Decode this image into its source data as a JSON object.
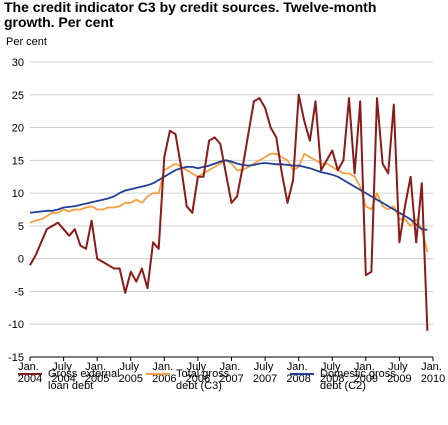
{
  "chart_data": {
    "type": "line",
    "title": "The credit indicator C3 by credit sources. Twelve-month growth. Per cent",
    "y_label": "Per cent",
    "categories": [
      "Jan. 2004",
      null,
      null,
      null,
      null,
      null,
      "July 2004",
      null,
      null,
      null,
      null,
      null,
      "Jan. 2005",
      null,
      null,
      null,
      null,
      null,
      "July 2005",
      null,
      null,
      null,
      null,
      null,
      "Jan. 2006",
      null,
      null,
      null,
      null,
      null,
      "July 2006",
      null,
      null,
      null,
      null,
      null,
      "Jan. 2007",
      null,
      null,
      null,
      null,
      null,
      "July 2007",
      null,
      null,
      null,
      null,
      null,
      "Jan. 2008",
      null,
      null,
      null,
      null,
      null,
      "July 2008",
      null,
      null,
      null,
      null,
      null,
      "Jan. 2009",
      null,
      null,
      null,
      null,
      null,
      "July 2009",
      null,
      null,
      null,
      null,
      null,
      "Jan. 2010"
    ],
    "series": [
      {
        "name": "Gross external loan debt",
        "color": "#8b1a1a",
        "values": [
          -1,
          0.5,
          2.5,
          4.5,
          5,
          5.5,
          4.5,
          3.5,
          4.5,
          2,
          1.5,
          5.8,
          0,
          -0.5,
          -1,
          -1.5,
          -1.5,
          -5.2,
          -2,
          -3.5,
          -1.5,
          -4.5,
          2.5,
          1.5,
          15.5,
          19.5,
          19,
          14,
          8,
          7,
          12.5,
          12.5,
          18,
          18.5,
          17.5,
          13,
          8.5,
          9.5,
          14,
          19,
          24,
          24.5,
          23,
          20,
          18.5,
          13,
          8.5,
          12,
          25,
          21,
          18,
          24,
          13.5,
          15,
          16.5,
          13.5,
          15,
          24.5,
          13,
          24,
          -2.5,
          -2,
          24.5,
          14.5,
          13,
          23.5,
          2.5,
          8,
          12.5,
          2.5,
          11.5,
          -11,
          null
        ]
      },
      {
        "name": "Total gross debt (C3)",
        "color": "#f5a040",
        "values": [
          5.5,
          5.8,
          6,
          6.5,
          7,
          7,
          7.5,
          7.2,
          7.5,
          7.5,
          7.8,
          8,
          7.5,
          7.5,
          7.8,
          7.8,
          8,
          8.5,
          8.5,
          9,
          8.5,
          9.5,
          10,
          10,
          13.5,
          14,
          14.5,
          14,
          13.5,
          13,
          12.5,
          13,
          13.5,
          14,
          14.5,
          15,
          14.5,
          13.5,
          13.5,
          14,
          14.5,
          15,
          15.5,
          16,
          16,
          15.5,
          15,
          13.5,
          14,
          16,
          15.5,
          15,
          14.5,
          14.5,
          14,
          13.5,
          13,
          13,
          12.5,
          11,
          8,
          7.5,
          10,
          8,
          7.5,
          8,
          6,
          6,
          5,
          6,
          4.5,
          1,
          null
        ]
      },
      {
        "name": "Domestic gross debt (C2)",
        "color": "#1f3f99",
        "values": [
          7,
          7.1,
          7.2,
          7.3,
          7.3,
          7.5,
          7.8,
          7.9,
          8,
          8.2,
          8.4,
          8.6,
          8.8,
          9,
          9.2,
          9.5,
          10,
          10.4,
          10.6,
          10.8,
          11,
          11.2,
          11.5,
          12,
          12.5,
          13,
          13.5,
          13.8,
          14,
          14,
          13.8,
          14,
          14.2,
          14.5,
          14.8,
          15,
          14.8,
          14.5,
          14.3,
          14.2,
          14.3,
          14.5,
          14.6,
          14.5,
          14.4,
          14.4,
          14.3,
          14.2,
          14.2,
          14,
          13.8,
          13.5,
          13.2,
          13,
          12.8,
          12.5,
          12,
          11.5,
          11,
          10.5,
          10,
          9.5,
          9,
          8.5,
          8,
          7.5,
          7,
          6.5,
          6,
          5.2,
          4.5,
          4.4,
          null
        ]
      }
    ],
    "ylim": [
      -15,
      30
    ],
    "yticks": [
      -15,
      -10,
      -5,
      0,
      5,
      10,
      15,
      20,
      25,
      30
    ],
    "grid": true
  }
}
